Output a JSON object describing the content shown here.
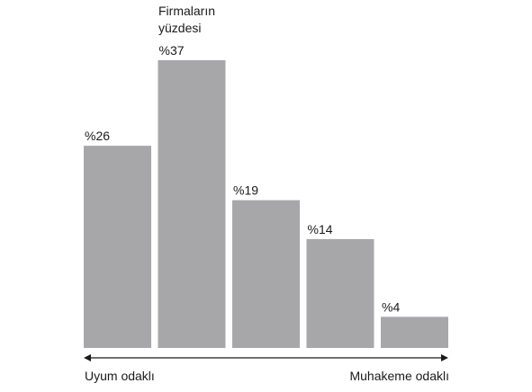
{
  "chart_data": {
    "type": "bar",
    "title": "",
    "ylabel": "Firmaların yüzdesi",
    "xlabel_left": "Uyum odaklı",
    "xlabel_right": "Muhakeme odaklı",
    "categories": [
      "",
      "",
      "",
      "",
      ""
    ],
    "values": [
      26,
      37,
      19,
      14,
      4
    ],
    "value_labels": [
      "%26",
      "%37",
      "%19",
      "%14",
      "%4"
    ],
    "ylim": [
      0,
      37
    ],
    "grid": false,
    "bar_color": "#a7a7a9",
    "axis_color": "#1a1a1a"
  }
}
